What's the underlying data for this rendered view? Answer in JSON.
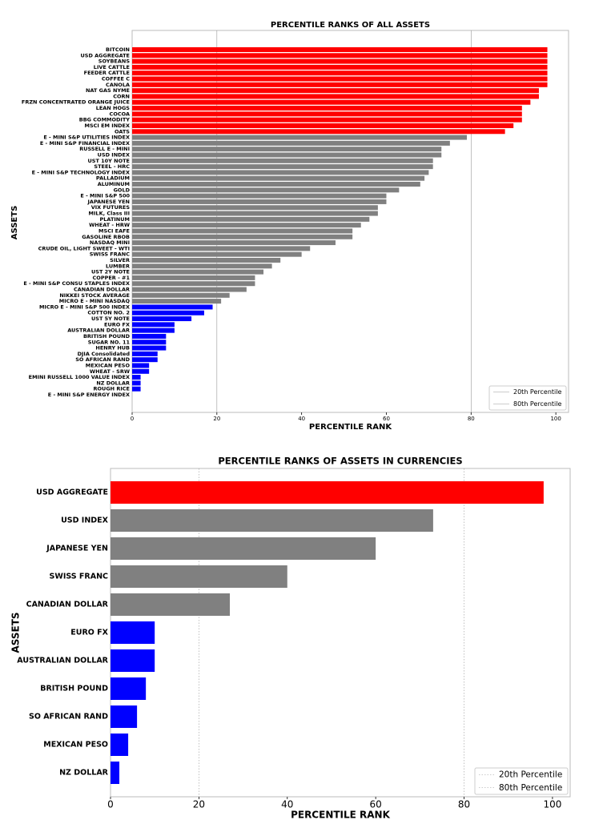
{
  "chart_data": [
    {
      "type": "barh",
      "title": "PERCENTILE RANKS OF  ALL ASSETS",
      "xlabel": "PERCENTILE RANK",
      "ylabel": "ASSETS",
      "categories": [
        "BITCOIN",
        "USD AGGREGATE",
        "SOYBEANS",
        "LIVE CATTLE",
        "FEEDER CATTLE",
        "COFFEE C",
        "CANOLA",
        "NAT GAS NYME",
        "CORN",
        "FRZN CONCENTRATED ORANGE JUICE",
        "LEAN HOGS",
        "COCOA",
        "BBG COMMODITY",
        "MSCI EM INDEX",
        "OATS",
        "E - MINI S&P UTILITIES INDEX",
        "E - MINI S&P FINANCIAL INDEX",
        "RUSSELL E - MINI",
        "USD INDEX",
        "UST 10Y NOTE",
        "STEEL - HRC",
        "E - MINI S&P TECHNOLOGY INDEX",
        "PALLADIUM",
        "ALUMINUM",
        "GOLD",
        "E - MINI S&P 500",
        "JAPANESE YEN",
        "VIX FUTURES",
        "MILK, Class III",
        "PLATINUM",
        "WHEAT - HRW",
        "MSCI EAFE",
        "GASOLINE RBOB",
        "NASDAQ MINI",
        "CRUDE OIL, LIGHT SWEET - WTI",
        "SWISS FRANC",
        "SILVER",
        "LUMBER",
        "UST 2Y NOTE",
        "COPPER - #1",
        "E - MINI S&P CONSU STAPLES INDEX",
        "CANADIAN DOLLAR",
        "NIKKEI STOCK AVERAGE",
        "MICRO E - MINI NASDAQ",
        "MICRO E - MINI S&P 500 INDEX",
        "COTTON NO. 2",
        "UST 5Y NOTE",
        "EURO FX",
        "AUSTRALIAN DOLLAR",
        "BRITISH POUND",
        "SUGAR NO. 11",
        "HENRY HUB",
        "DJIA Consolidated",
        "SO AFRICAN RAND",
        "MEXICAN PESO",
        "WHEAT - SRW",
        "EMINI RUSSELL 1000 VALUE INDEX",
        "NZ DOLLAR",
        "ROUGH RICE",
        "E - MINI S&P ENERGY INDEX"
      ],
      "values": [
        98,
        98,
        98,
        98,
        98,
        98,
        98,
        96,
        96,
        94,
        92,
        92,
        92,
        90,
        88,
        79,
        75,
        73,
        73,
        71,
        71,
        70,
        69,
        68,
        63,
        60,
        60,
        58,
        58,
        56,
        54,
        52,
        52,
        48,
        42,
        40,
        35,
        33,
        31,
        29,
        29,
        27,
        23,
        21,
        19,
        17,
        14,
        10,
        10,
        8,
        8,
        8,
        6,
        6,
        4,
        4,
        2,
        2,
        2,
        0
      ],
      "colors": [
        "#ff0000",
        "#ff0000",
        "#ff0000",
        "#ff0000",
        "#ff0000",
        "#ff0000",
        "#ff0000",
        "#ff0000",
        "#ff0000",
        "#ff0000",
        "#ff0000",
        "#ff0000",
        "#ff0000",
        "#ff0000",
        "#ff0000",
        "#808080",
        "#808080",
        "#808080",
        "#808080",
        "#808080",
        "#808080",
        "#808080",
        "#808080",
        "#808080",
        "#808080",
        "#808080",
        "#808080",
        "#808080",
        "#808080",
        "#808080",
        "#808080",
        "#808080",
        "#808080",
        "#808080",
        "#808080",
        "#808080",
        "#808080",
        "#808080",
        "#808080",
        "#808080",
        "#808080",
        "#808080",
        "#808080",
        "#808080",
        "#0000ff",
        "#0000ff",
        "#0000ff",
        "#0000ff",
        "#0000ff",
        "#0000ff",
        "#0000ff",
        "#0000ff",
        "#0000ff",
        "#0000ff",
        "#0000ff",
        "#0000ff",
        "#0000ff",
        "#0000ff",
        "#0000ff",
        "#0000ff"
      ],
      "xlim": [
        0,
        103
      ],
      "xticks": [
        0,
        20,
        40,
        60,
        80,
        100
      ],
      "reference_lines": [
        {
          "value": 20,
          "label": "20th Percentile"
        },
        {
          "value": 80,
          "label": "80th Percentile"
        }
      ],
      "reference_line_style": "solid",
      "legend": "lower right"
    },
    {
      "type": "barh",
      "title": "PERCENTILE RANKS OF ASSETS IN CURRENCIES",
      "xlabel": "PERCENTILE RANK",
      "ylabel": "ASSETS",
      "categories": [
        "USD AGGREGATE",
        "USD INDEX",
        "JAPANESE YEN",
        "SWISS FRANC",
        "CANADIAN DOLLAR",
        "EURO FX",
        "AUSTRALIAN DOLLAR",
        "BRITISH POUND",
        "SO AFRICAN RAND",
        "MEXICAN PESO",
        "NZ DOLLAR"
      ],
      "values": [
        98,
        73,
        60,
        40,
        27,
        10,
        10,
        8,
        6,
        4,
        2
      ],
      "colors": [
        "#ff0000",
        "#808080",
        "#808080",
        "#808080",
        "#808080",
        "#0000ff",
        "#0000ff",
        "#0000ff",
        "#0000ff",
        "#0000ff",
        "#0000ff"
      ],
      "xlim": [
        0,
        104
      ],
      "xticks": [
        0,
        20,
        40,
        60,
        80,
        100
      ],
      "reference_lines": [
        {
          "value": 20,
          "label": "20th Percentile"
        },
        {
          "value": 80,
          "label": "80th Percentile"
        }
      ],
      "reference_line_style": "dotted",
      "legend": "lower right"
    }
  ]
}
